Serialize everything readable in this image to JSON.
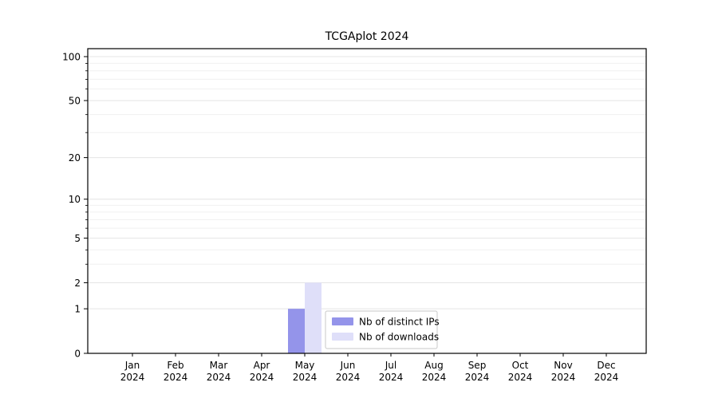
{
  "chart_data": {
    "type": "bar",
    "title": "TCGAplot 2024",
    "categories": [
      "Jan",
      "Feb",
      "Mar",
      "Apr",
      "May",
      "Jun",
      "Jul",
      "Aug",
      "Sep",
      "Oct",
      "Nov",
      "Dec"
    ],
    "year_label": "2024",
    "series": [
      {
        "name": "Nb of distinct IPs",
        "color": "#9494ea",
        "values": [
          0,
          0,
          0,
          0,
          1,
          0,
          0,
          0,
          0,
          0,
          0,
          0
        ]
      },
      {
        "name": "Nb of downloads",
        "color": "#dfdff9",
        "values": [
          0,
          0,
          0,
          0,
          2,
          0,
          0,
          0,
          0,
          0,
          0,
          0
        ]
      }
    ],
    "y_scale": "log1p",
    "ylim": [
      0,
      100
    ],
    "y_ticks": [
      0,
      1,
      2,
      5,
      10,
      20,
      50,
      100
    ],
    "y_minor_ticks": [
      3,
      4,
      6,
      7,
      8,
      9,
      30,
      40,
      60,
      70,
      80,
      90
    ],
    "grid": "horizontal",
    "legend_position": "inside-bottom-center",
    "legend_entries": [
      "Nb of distinct IPs",
      "Nb of downloads"
    ]
  },
  "colors": {
    "plot_border": "#000000",
    "gridline_minor": "#f0f0f0",
    "gridline_major": "#e4e4e4",
    "legend_border": "#c9c9c9",
    "legend_background": "#ffffff"
  }
}
